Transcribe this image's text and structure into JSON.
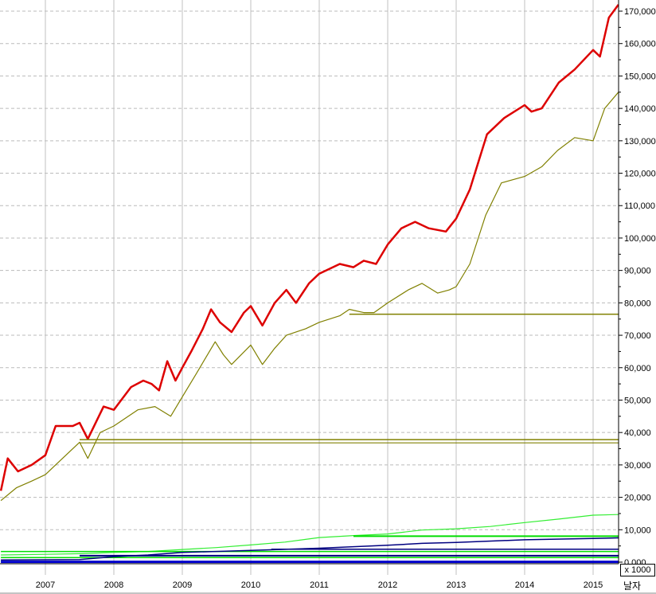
{
  "chart_data": {
    "type": "line",
    "title": "",
    "xlabel": "날자",
    "ylabel": "",
    "y_unit": "x 1000",
    "xlim": [
      2006.35,
      2015.37
    ],
    "ylim": [
      0,
      174000
    ],
    "grid": true,
    "legend": "none",
    "x_ticks": [
      "2007",
      "2008",
      "2009",
      "2010",
      "2011",
      "2012",
      "2013",
      "2014",
      "2015"
    ],
    "y_ticks": [
      "0,000",
      "10,000",
      "20,000",
      "30,000",
      "40,000",
      "50,000",
      "60,000",
      "70,000",
      "80,000",
      "90,000",
      "100,000",
      "110,000",
      "120,000",
      "130,000",
      "140,000",
      "150,000",
      "160,000",
      "170,000"
    ],
    "series": [
      {
        "color": "#dd0000",
        "width": 2.5,
        "points": [
          [
            2006.35,
            22000
          ],
          [
            2006.45,
            32000
          ],
          [
            2006.6,
            28000
          ],
          [
            2006.8,
            30000
          ],
          [
            2007.0,
            33000
          ],
          [
            2007.15,
            42000
          ],
          [
            2007.4,
            42000
          ],
          [
            2007.5,
            43000
          ],
          [
            2007.62,
            38000
          ],
          [
            2007.85,
            48000
          ],
          [
            2008.0,
            47000
          ],
          [
            2008.25,
            54000
          ],
          [
            2008.43,
            56000
          ],
          [
            2008.55,
            55000
          ],
          [
            2008.66,
            53000
          ],
          [
            2008.78,
            62000
          ],
          [
            2008.9,
            56000
          ],
          [
            2009.0,
            60000
          ],
          [
            2009.13,
            65000
          ],
          [
            2009.3,
            72000
          ],
          [
            2009.42,
            78000
          ],
          [
            2009.55,
            74000
          ],
          [
            2009.72,
            71000
          ],
          [
            2009.9,
            77000
          ],
          [
            2010.0,
            79000
          ],
          [
            2010.17,
            73000
          ],
          [
            2010.35,
            80000
          ],
          [
            2010.52,
            84000
          ],
          [
            2010.66,
            80000
          ],
          [
            2010.85,
            86000
          ],
          [
            2011.0,
            89000
          ],
          [
            2011.3,
            92000
          ],
          [
            2011.5,
            91000
          ],
          [
            2011.65,
            93000
          ],
          [
            2011.83,
            92000
          ],
          [
            2012.0,
            98000
          ],
          [
            2012.2,
            103000
          ],
          [
            2012.4,
            105000
          ],
          [
            2012.6,
            103000
          ],
          [
            2012.85,
            102000
          ],
          [
            2013.0,
            106000
          ],
          [
            2013.2,
            115000
          ],
          [
            2013.45,
            132000
          ],
          [
            2013.7,
            137000
          ],
          [
            2014.0,
            141000
          ],
          [
            2014.1,
            139000
          ],
          [
            2014.25,
            140000
          ],
          [
            2014.5,
            148000
          ],
          [
            2014.73,
            152000
          ],
          [
            2015.0,
            158000
          ],
          [
            2015.1,
            156000
          ],
          [
            2015.23,
            168000
          ],
          [
            2015.37,
            172000
          ]
        ]
      },
      {
        "color": "#808000",
        "width": 1.2,
        "points": [
          [
            2006.35,
            19000
          ],
          [
            2006.58,
            23000
          ],
          [
            2006.8,
            25000
          ],
          [
            2007.0,
            27000
          ],
          [
            2007.25,
            32000
          ],
          [
            2007.5,
            37000
          ],
          [
            2007.62,
            32000
          ],
          [
            2007.8,
            40000
          ],
          [
            2008.0,
            42000
          ],
          [
            2008.35,
            47000
          ],
          [
            2008.6,
            48000
          ],
          [
            2008.83,
            45000
          ],
          [
            2009.0,
            51000
          ],
          [
            2009.2,
            58000
          ],
          [
            2009.48,
            68000
          ],
          [
            2009.6,
            64000
          ],
          [
            2009.72,
            61000
          ],
          [
            2010.0,
            67000
          ],
          [
            2010.17,
            61000
          ],
          [
            2010.35,
            66000
          ],
          [
            2010.52,
            70000
          ],
          [
            2010.8,
            72000
          ],
          [
            2011.0,
            74000
          ],
          [
            2011.3,
            76000
          ],
          [
            2011.44,
            78000
          ],
          [
            2011.65,
            77000
          ],
          [
            2011.8,
            77000
          ],
          [
            2012.0,
            80000
          ],
          [
            2012.3,
            84000
          ],
          [
            2012.5,
            86000
          ],
          [
            2012.73,
            83000
          ],
          [
            2012.9,
            84000
          ],
          [
            2013.0,
            85000
          ],
          [
            2013.2,
            92000
          ],
          [
            2013.43,
            107000
          ],
          [
            2013.66,
            117000
          ],
          [
            2014.0,
            119000
          ],
          [
            2014.25,
            122000
          ],
          [
            2014.48,
            127000
          ],
          [
            2014.73,
            131000
          ],
          [
            2015.0,
            130000
          ],
          [
            2015.17,
            140000
          ],
          [
            2015.37,
            145000
          ]
        ]
      },
      {
        "color": "#808000",
        "width": 1.5,
        "points": [
          [
            2011.44,
            76500
          ],
          [
            2015.37,
            76500
          ]
        ]
      },
      {
        "color": "#808000",
        "width": 1.5,
        "points": [
          [
            2007.5,
            37800
          ],
          [
            2015.37,
            37800
          ]
        ]
      },
      {
        "color": "#808000",
        "width": 1.2,
        "points": [
          [
            2007.5,
            36800
          ],
          [
            2015.37,
            36800
          ]
        ]
      },
      {
        "color": "#33ee33",
        "width": 1.2,
        "points": [
          [
            2006.35,
            2200
          ],
          [
            2007.0,
            2400
          ],
          [
            2007.5,
            2600
          ],
          [
            2008.0,
            3000
          ],
          [
            2008.5,
            3300
          ],
          [
            2009.0,
            3900
          ],
          [
            2009.5,
            4500
          ],
          [
            2010.0,
            5300
          ],
          [
            2010.5,
            6200
          ],
          [
            2011.0,
            7600
          ],
          [
            2011.5,
            8200
          ],
          [
            2012.0,
            8700
          ],
          [
            2012.5,
            9900
          ],
          [
            2013.0,
            10300
          ],
          [
            2013.5,
            11000
          ],
          [
            2014.0,
            12200
          ],
          [
            2014.5,
            13300
          ],
          [
            2015.0,
            14500
          ],
          [
            2015.37,
            14700
          ]
        ]
      },
      {
        "color": "#00dd00",
        "width": 2,
        "points": [
          [
            2011.5,
            8000
          ],
          [
            2015.37,
            8000
          ]
        ]
      },
      {
        "color": "#00dd00",
        "width": 1.5,
        "points": [
          [
            2006.35,
            3300
          ],
          [
            2015.37,
            3300
          ]
        ]
      },
      {
        "color": "#00dd00",
        "width": 1.5,
        "points": [
          [
            2006.35,
            1400
          ],
          [
            2015.37,
            1400
          ]
        ]
      },
      {
        "color": "#00dd00",
        "width": 1.5,
        "points": [
          [
            2006.35,
            200
          ],
          [
            2015.37,
            200
          ]
        ]
      },
      {
        "color": "#000080",
        "width": 1.5,
        "points": [
          [
            2006.35,
            700
          ],
          [
            2007.5,
            800
          ],
          [
            2008.0,
            1700
          ],
          [
            2008.5,
            2200
          ],
          [
            2009.0,
            3000
          ],
          [
            2010.0,
            3600
          ],
          [
            2011.0,
            4300
          ],
          [
            2012.0,
            5200
          ],
          [
            2012.5,
            5800
          ],
          [
            2013.0,
            6100
          ],
          [
            2014.0,
            6900
          ],
          [
            2015.0,
            7300
          ],
          [
            2015.37,
            7500
          ]
        ]
      },
      {
        "color": "#000080",
        "width": 1.5,
        "points": [
          [
            2010.3,
            4000
          ],
          [
            2015.37,
            4000
          ]
        ]
      },
      {
        "color": "#000080",
        "width": 2,
        "points": [
          [
            2007.5,
            2000
          ],
          [
            2015.37,
            2000
          ]
        ]
      },
      {
        "color": "#0000cc",
        "width": 3,
        "points": [
          [
            2006.35,
            100
          ],
          [
            2015.37,
            100
          ]
        ]
      }
    ]
  }
}
